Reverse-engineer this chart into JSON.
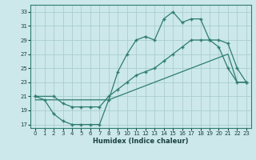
{
  "xlabel": "Humidex (Indice chaleur)",
  "bg_color": "#cce8ea",
  "grid_color": "#aacdd0",
  "line_color": "#2e7d6e",
  "xlim": [
    -0.5,
    23.5
  ],
  "ylim": [
    16.5,
    34.0
  ],
  "xticks": [
    0,
    1,
    2,
    3,
    4,
    5,
    6,
    7,
    8,
    9,
    10,
    11,
    12,
    13,
    14,
    15,
    16,
    17,
    18,
    19,
    20,
    21,
    22,
    23
  ],
  "yticks": [
    17,
    19,
    21,
    23,
    25,
    27,
    29,
    31,
    33
  ],
  "line1_x": [
    0,
    1,
    2,
    3,
    4,
    5,
    6,
    7,
    8,
    9,
    10,
    11,
    12,
    13,
    14,
    15,
    16,
    17,
    18,
    19,
    20,
    21,
    22,
    23
  ],
  "line1_y": [
    21,
    20.5,
    18.5,
    17.5,
    17,
    17,
    17,
    17,
    20.5,
    24.5,
    27,
    29,
    29.5,
    29,
    32,
    33,
    31.5,
    32,
    32,
    29,
    28,
    25,
    23,
    23
  ],
  "line2_x": [
    0,
    2,
    3,
    4,
    5,
    6,
    7,
    8,
    9,
    10,
    11,
    12,
    13,
    14,
    15,
    16,
    17,
    18,
    19,
    20,
    21,
    22,
    23
  ],
  "line2_y": [
    21,
    21,
    20,
    19.5,
    19.5,
    19.5,
    19.5,
    21,
    22,
    23,
    24,
    24.5,
    25,
    26,
    27,
    28,
    29,
    29,
    29,
    29,
    28.5,
    25,
    23
  ],
  "line3_x": [
    0,
    1,
    2,
    3,
    4,
    5,
    6,
    7,
    8,
    9,
    10,
    11,
    12,
    13,
    14,
    15,
    16,
    17,
    18,
    19,
    20,
    21,
    22,
    23
  ],
  "line3_y": [
    20.5,
    20.5,
    20.5,
    20.5,
    20.5,
    20.5,
    20.5,
    20.5,
    20.5,
    21,
    21.5,
    22,
    22.5,
    23,
    23.5,
    24,
    24.5,
    25,
    25.5,
    26,
    26.5,
    27,
    23,
    23
  ]
}
